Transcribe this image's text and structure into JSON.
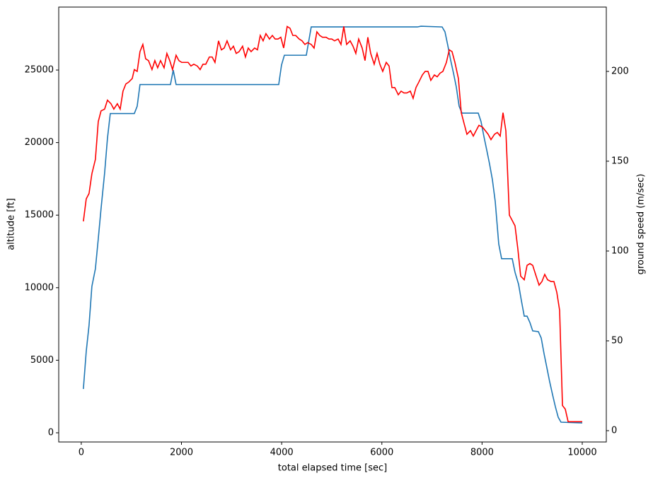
{
  "chart_data": {
    "type": "line",
    "x_label": "total elapsed time [sec]",
    "y_label": "altitude [ft]",
    "y2_label": "ground speed (m/sec)",
    "y2_label_color": "#ff0000",
    "xlim": [
      -450,
      10480
    ],
    "xticks": [
      0,
      2000,
      4000,
      6000,
      8000,
      10000
    ],
    "ylim": [
      -634,
      29340
    ],
    "yticks": [
      0,
      5000,
      10000,
      15000,
      20000,
      25000
    ],
    "y2lim": [
      -6.3,
      235.8
    ],
    "y2ticks": [
      0,
      50,
      100,
      150,
      200
    ],
    "grid": false,
    "series": [
      {
        "color": "#1f77b4",
        "x": [
          42,
          99,
          155,
          212,
          282,
          339,
          395,
          466,
          523,
          579,
          1059,
          1116,
          1172,
          1780,
          1836,
          1893,
          3941,
          3997,
          4054,
          4492,
          4590,
          6709,
          6780,
          7203,
          7260,
          7316,
          7373,
          7429,
          7486,
          7542,
          7599,
          7924,
          7980,
          8037,
          8093,
          8150,
          8206,
          8263,
          8333,
          8390,
          8602,
          8658,
          8729,
          8785,
          8842,
          8898,
          8955,
          9011,
          9124,
          9181,
          9237,
          9294,
          9350,
          9407,
          9463,
          9520,
          9576,
          10000
        ],
        "values": [
          3020,
          5600,
          7400,
          10090,
          11300,
          13350,
          15450,
          17900,
          20300,
          22000,
          22000,
          22500,
          24000,
          24000,
          25000,
          24000,
          24000,
          25340,
          26020,
          26020,
          27970,
          27970,
          28020,
          27970,
          27630,
          26700,
          25680,
          24800,
          23830,
          22510,
          22030,
          22030,
          21440,
          20420,
          19490,
          18520,
          17450,
          15940,
          13010,
          12000,
          12000,
          11060,
          10230,
          9110,
          8040,
          8040,
          7600,
          7020,
          6970,
          6530,
          5460,
          4480,
          3510,
          2630,
          1800,
          1070,
          730,
          680
        ]
      },
      {
        "color": "#ff0000",
        "axis": "y2",
        "x": [
          42,
          99,
          155,
          212,
          282,
          339,
          395,
          466,
          523,
          593,
          650,
          720,
          777,
          833,
          890,
          946,
          1017,
          1059,
          1116,
          1172,
          1229,
          1285,
          1342,
          1412,
          1469,
          1525,
          1582,
          1653,
          1709,
          1766,
          1822,
          1893,
          1949,
          2006,
          2076,
          2133,
          2189,
          2246,
          2316,
          2373,
          2429,
          2486,
          2556,
          2613,
          2669,
          2740,
          2797,
          2853,
          2910,
          2980,
          3037,
          3093,
          3150,
          3220,
          3277,
          3333,
          3390,
          3460,
          3517,
          3573,
          3630,
          3686,
          3757,
          3814,
          3870,
          3927,
          3983,
          4040,
          4110,
          4167,
          4223,
          4280,
          4350,
          4407,
          4463,
          4520,
          4590,
          4647,
          4703,
          4760,
          4816,
          4887,
          4944,
          5000,
          5056,
          5127,
          5184,
          5240,
          5297,
          5367,
          5424,
          5480,
          5537,
          5607,
          5664,
          5720,
          5777,
          5847,
          5904,
          5960,
          6017,
          6088,
          6144,
          6201,
          6257,
          6328,
          6384,
          6441,
          6497,
          6568,
          6624,
          6681,
          6737,
          6808,
          6864,
          6921,
          6977,
          7048,
          7105,
          7161,
          7218,
          7288,
          7345,
          7401,
          7458,
          7528,
          7585,
          7641,
          7698,
          7768,
          7825,
          7881,
          7938,
          8008,
          8065,
          8121,
          8178,
          8249,
          8305,
          8362,
          8418,
          8475,
          8545,
          8602,
          8658,
          8715,
          8771,
          8842,
          8898,
          8955,
          9011,
          9068,
          9138,
          9195,
          9251,
          9308,
          9379,
          9435,
          9492,
          9548,
          9605,
          9661,
          9718,
          10000
        ],
        "values": [
          116.5,
          129,
          132,
          143,
          151,
          172,
          178,
          179,
          184,
          182,
          179,
          182,
          179,
          189,
          193,
          194,
          196,
          201,
          200,
          211,
          215,
          207,
          206,
          201,
          206,
          202,
          206,
          202,
          210,
          206,
          201,
          209,
          206,
          205,
          205,
          205,
          203,
          204,
          203,
          201,
          204,
          204,
          208,
          208,
          205,
          217,
          212,
          213,
          217,
          212,
          214,
          210,
          211,
          214,
          208,
          213,
          211,
          213,
          212,
          220,
          217,
          221,
          218,
          220,
          218,
          218,
          219,
          213,
          225,
          224,
          220,
          220,
          218,
          217,
          215,
          216,
          215,
          213,
          222,
          220,
          219,
          219,
          218,
          218,
          217,
          218,
          215,
          225,
          215,
          217,
          214,
          210,
          218,
          213,
          206,
          219,
          210,
          204,
          210,
          204,
          200,
          205,
          203,
          191,
          191,
          187,
          189,
          188,
          188,
          189,
          185,
          191,
          194,
          198,
          200,
          200,
          195,
          198,
          197,
          199,
          200,
          205,
          212,
          211,
          205,
          196,
          177,
          171,
          165,
          167,
          164,
          167,
          170,
          169,
          167,
          165,
          162,
          165,
          166,
          164,
          177,
          167,
          120,
          117,
          114,
          101,
          86,
          84,
          92,
          93,
          92,
          87,
          81,
          83,
          87,
          84,
          83,
          83,
          77,
          67,
          14,
          12,
          5,
          5
        ]
      }
    ]
  }
}
